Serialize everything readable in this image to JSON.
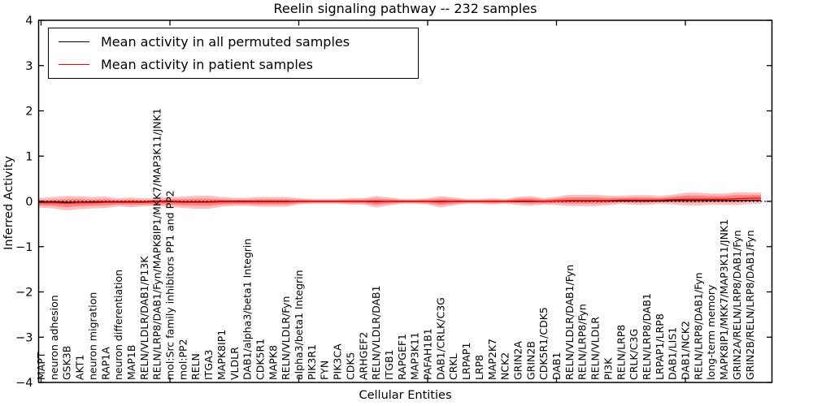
{
  "title": "Reelin signaling pathway -- 232 samples",
  "legend": {
    "items": [
      {
        "label": "Mean activity in all permuted samples",
        "color": "#000000"
      },
      {
        "label": "Mean activity in patient samples",
        "color": "#ff0000"
      }
    ]
  },
  "axes": {
    "ylabel": "Inferred Activity",
    "xlabel": "Cellular Entities",
    "yticks": [
      "4",
      "3",
      "2",
      "1",
      "0",
      "−1",
      "−2",
      "−3",
      "−4"
    ],
    "ylim": [
      -4,
      4
    ]
  },
  "chart_data": {
    "type": "line",
    "title": "Reelin signaling pathway -- 232 samples",
    "xlabel": "Cellular Entities",
    "ylabel": "Inferred Activity",
    "ylim": [
      -4,
      4
    ],
    "grid": false,
    "legend_position": "upper left",
    "x_major_tick_every": 10,
    "categories": [
      "MAPT",
      "neuron adhesion",
      "GSK3B",
      "AKT1",
      "neuron migration",
      "RAP1A",
      "neuron differentiation",
      "MAP1B",
      "RELN/VLDLR/DAB1/P13K",
      "RELN/LRP8/DAB1/Fyn/MAPK8IP1/MKK7/MAP3K11/JNK1",
      "mol:Src family inhibitors PP1 and PP2",
      "mol:PP2",
      "RELN",
      "ITGA3",
      "MAPK8IP1",
      "VLDLR",
      "DAB1/alpha3/beta1 Integrin",
      "CDK5R1",
      "MAPK8",
      "RELN/VLDLR/Fyn",
      "alpha3/beta1 Integrin",
      "PIK3R1",
      "FYN",
      "PIK3CA",
      "CDK5",
      "ARHGEF2",
      "RELN/VLDLR/DAB1",
      "ITGB1",
      "RAPGEF1",
      "MAP3K11",
      "PAFAH1B1",
      "DAB1/CRLK/C3G",
      "CRKL",
      "LRPAP1",
      "LRP8",
      "MAP2K7",
      "NCK2",
      "GRIN2A",
      "GRIN2B",
      "CDK5R1/CDK5",
      "DAB1",
      "RELN/VLDLR/DAB1/Fyn",
      "RELN/LRP8/Fyn",
      "RELN/VLDLR",
      "PI3K",
      "RELN/LRP8",
      "CRLK/C3G",
      "RELN/LRP8/DAB1",
      "LRPAP1/LRP8",
      "DAB1/LIS1",
      "DAB1/NCK2",
      "RELN/LRP8/DAB1/Fyn",
      "long-term memory",
      "MAPK8IP1/MKK7/MAP3K11/JNK1",
      "GRIN2A/RELN/LRP8/DAB1/Fyn",
      "GRIN2B/RELN/LRP8/DAB1/Fyn"
    ],
    "series": [
      {
        "name": "Mean activity in all permuted samples",
        "color": "#000000",
        "values": [
          -0.01,
          -0.01,
          -0.02,
          -0.02,
          -0.01,
          -0.01,
          -0.01,
          -0.01,
          -0.01,
          0,
          0,
          -0.01,
          -0.01,
          -0.01,
          0,
          0,
          0,
          0,
          0,
          0,
          0,
          0,
          0,
          0,
          0,
          0,
          0,
          0,
          0,
          0,
          0,
          0,
          0,
          0,
          0,
          0,
          0,
          0,
          0,
          0,
          0.01,
          0.01,
          0.01,
          0.01,
          0.01,
          0.01,
          0.01,
          0.01,
          0.01,
          0.02,
          0.02,
          0.02,
          0.02,
          0.02,
          0.02,
          0.02
        ]
      },
      {
        "name": "Mean activity in patient samples",
        "color": "#ff0000",
        "values": [
          -0.03,
          -0.03,
          -0.04,
          -0.03,
          -0.03,
          -0.02,
          -0.02,
          -0.02,
          -0.02,
          -0.01,
          -0.01,
          -0.02,
          -0.02,
          -0.02,
          -0.01,
          -0.01,
          -0.01,
          -0.01,
          -0.01,
          -0.01,
          0,
          0,
          0,
          0,
          0,
          0,
          -0.01,
          0,
          0,
          0,
          0,
          -0.01,
          0,
          0,
          0,
          0,
          0,
          0.01,
          0.01,
          0,
          0.01,
          0.02,
          0.02,
          0.02,
          0.02,
          0.03,
          0.03,
          0.03,
          0.03,
          0.04,
          0.05,
          0.05,
          0.05,
          0.05,
          0.06,
          0.07
        ]
      }
    ],
    "band": {
      "description": "red shaded spread around patient mean",
      "color": "#ff0000",
      "outer_alpha": 0.25,
      "inner_alpha": 0.32,
      "inner_ratio": 0.55,
      "outer_half_width": [
        0.108,
        0.126,
        0.161,
        0.143,
        0.126,
        0.126,
        0.09,
        0.108,
        0.09,
        0.09,
        0.108,
        0.126,
        0.143,
        0.143,
        0.108,
        0.09,
        0.09,
        0.108,
        0.108,
        0.108,
        0.072,
        0.054,
        0.054,
        0.054,
        0.072,
        0.072,
        0.126,
        0.09,
        0.054,
        0.054,
        0.072,
        0.126,
        0.09,
        0.054,
        0.054,
        0.072,
        0.054,
        0.09,
        0.108,
        0.072,
        0.09,
        0.126,
        0.126,
        0.126,
        0.108,
        0.09,
        0.108,
        0.108,
        0.09,
        0.108,
        0.143,
        0.143,
        0.126,
        0.126,
        0.143,
        0.126
      ]
    },
    "zero_line": {
      "value": 0,
      "style": "dotted",
      "color": "#000000"
    }
  }
}
